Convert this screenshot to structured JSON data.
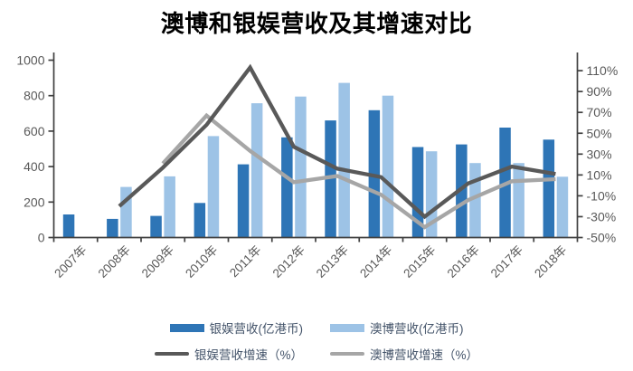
{
  "title": "澳博和银娱营收及其增速对比",
  "colors": {
    "galaxy_bar": "#2E75B6",
    "sjm_bar": "#9DC3E6",
    "galaxy_line": "#595959",
    "sjm_line": "#A6A6A6",
    "axis": "#404040",
    "tick_label": "#595959",
    "legend_text": "#44546A",
    "background": "#FFFFFF"
  },
  "legend": {
    "galaxy_revenue": "银娱营收(亿港币)",
    "sjm_revenue": "澳博营收(亿港币)",
    "galaxy_growth": "银娱营收增速（%）",
    "sjm_growth": "澳博营收增速（%）"
  },
  "chart_data": {
    "type": "bar",
    "subtype": "bar-line-combo",
    "title": "澳博和银娱营收及其增速对比",
    "grid": false,
    "legend_position": "bottom",
    "categories": [
      "2007年",
      "2008年",
      "2009年",
      "2010年",
      "2011年",
      "2012年",
      "2013年",
      "2014年",
      "2015年",
      "2016年",
      "2017年",
      "2018年"
    ],
    "series": [
      {
        "name": "银娱营收(亿港币)",
        "type": "bar",
        "axis": "left",
        "color": "#2E75B6",
        "values": [
          130,
          105,
          122,
          195,
          413,
          565,
          660,
          718,
          510,
          525,
          620,
          552
        ]
      },
      {
        "name": "澳博营收(亿港币)",
        "type": "bar",
        "axis": "left",
        "color": "#9DC3E6",
        "values": [
          null,
          285,
          345,
          572,
          757,
          795,
          872,
          800,
          486,
          420,
          420,
          343
        ]
      },
      {
        "name": "银娱营收增速（%）",
        "type": "line",
        "axis": "right",
        "color": "#595959",
        "values": [
          null,
          -20,
          17,
          58,
          113,
          37,
          16,
          8,
          -30,
          2,
          18,
          11
        ]
      },
      {
        "name": "澳博营收增速（%）",
        "type": "line",
        "axis": "right",
        "color": "#A6A6A6",
        "values": [
          null,
          null,
          21,
          67,
          33,
          3,
          9,
          -9,
          -40,
          -14,
          4,
          6
        ]
      }
    ],
    "left_axis": {
      "min": 0,
      "max": 1000,
      "step": 200,
      "ticks": [
        0,
        200,
        400,
        600,
        800,
        1000
      ]
    },
    "right_axis": {
      "min": -50,
      "max": 125,
      "step": 20,
      "ticks": [
        -50,
        -30,
        -10,
        10,
        30,
        50,
        70,
        90,
        110
      ],
      "unit": "%"
    }
  }
}
